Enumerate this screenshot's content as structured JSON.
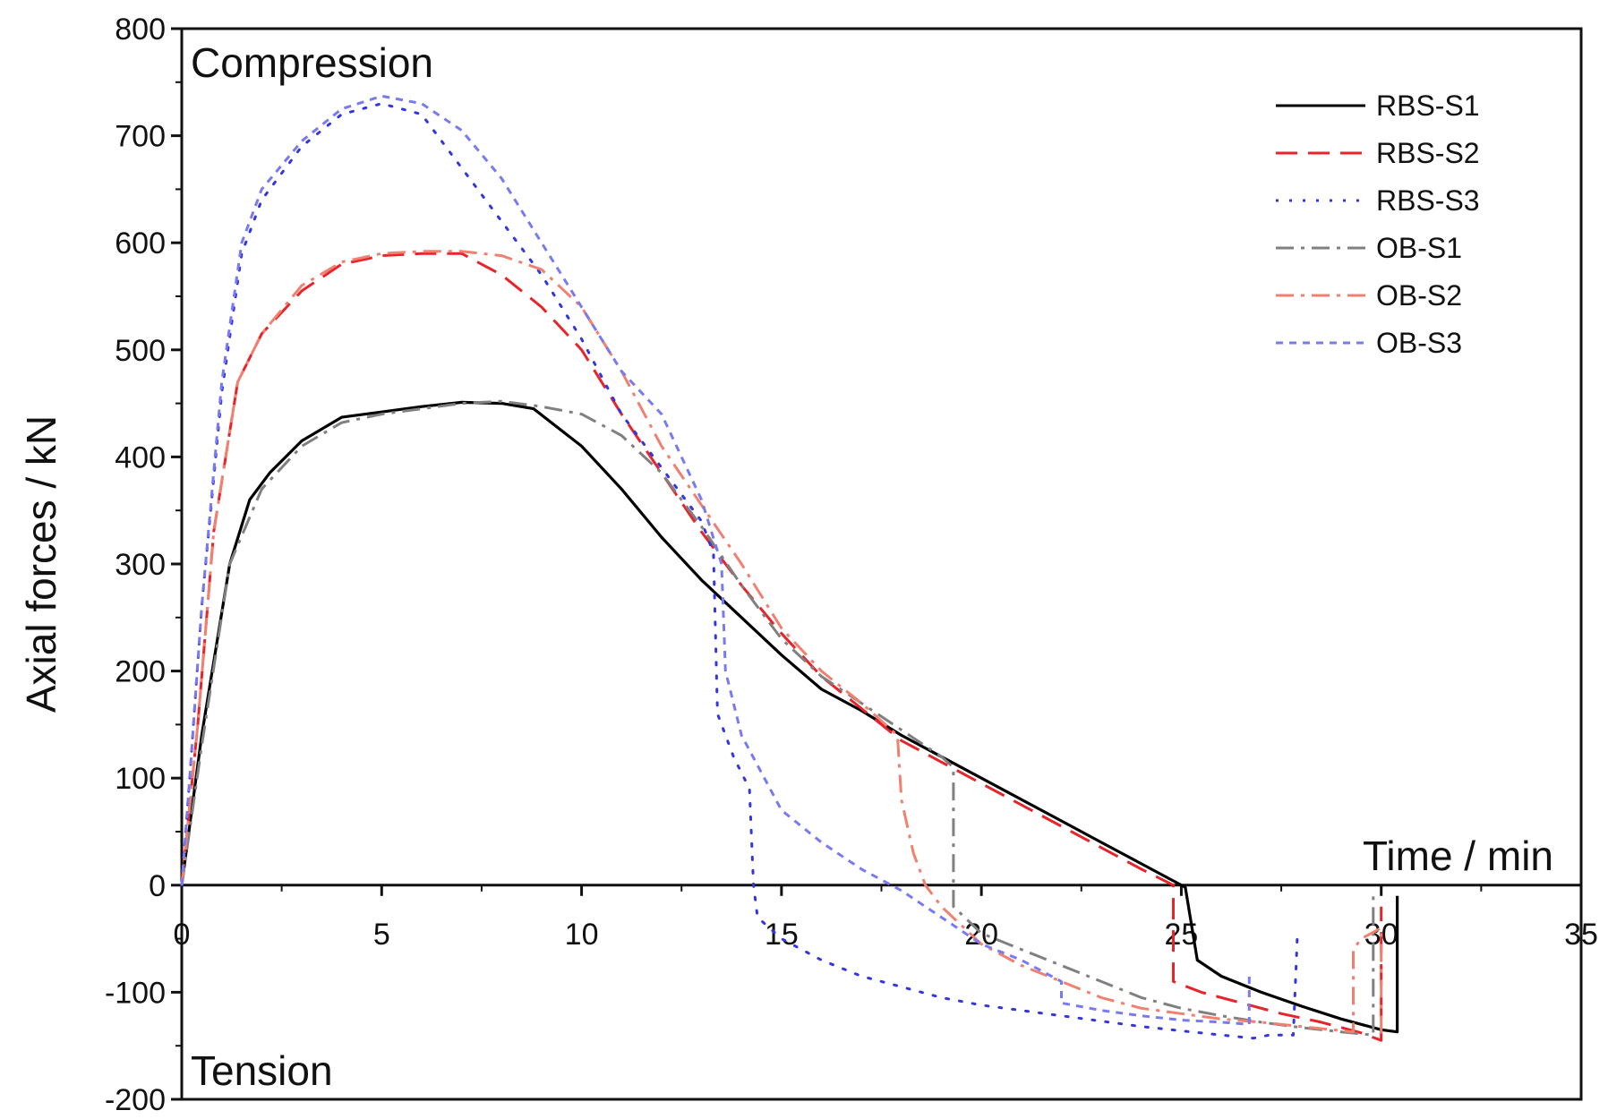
{
  "chart_data": {
    "type": "line",
    "xlabel": "Time / min",
    "ylabel": "Axial forces  / kN",
    "xlim": [
      0,
      35
    ],
    "ylim": [
      -200,
      800
    ],
    "xticks": [
      "0",
      "5",
      "10",
      "15",
      "20",
      "25",
      "30",
      "35"
    ],
    "yticks": [
      "800",
      "700",
      "600",
      "500",
      "400",
      "300",
      "200",
      "100",
      "0",
      "-100",
      "-200"
    ],
    "annotations": {
      "top": "Compression",
      "bottom": "Tension"
    },
    "grid": false,
    "legend_position": "top-right",
    "series": [
      {
        "name": "RBS-S1",
        "color": "#000000",
        "style": "solid",
        "points": [
          [
            0,
            0
          ],
          [
            0.5,
            140
          ],
          [
            1.2,
            300
          ],
          [
            1.7,
            360
          ],
          [
            2.2,
            385
          ],
          [
            3,
            415
          ],
          [
            4,
            437
          ],
          [
            5,
            442
          ],
          [
            6,
            447
          ],
          [
            7,
            451
          ],
          [
            8,
            450
          ],
          [
            8.8,
            445
          ],
          [
            10,
            410
          ],
          [
            11,
            370
          ],
          [
            12,
            325
          ],
          [
            13,
            285
          ],
          [
            14,
            250
          ],
          [
            15,
            215
          ],
          [
            16,
            183
          ],
          [
            17,
            163
          ],
          [
            18,
            140
          ],
          [
            19,
            120
          ],
          [
            20,
            100
          ],
          [
            21,
            80
          ],
          [
            22,
            60
          ],
          [
            23,
            40
          ],
          [
            24,
            20
          ],
          [
            24.9,
            2
          ],
          [
            25.1,
            -2
          ],
          [
            25.4,
            -70
          ],
          [
            26,
            -85
          ],
          [
            27,
            -100
          ],
          [
            28,
            -113
          ],
          [
            29,
            -125
          ],
          [
            30,
            -135
          ],
          [
            30.4,
            -137
          ],
          [
            30.4,
            -10
          ]
        ]
      },
      {
        "name": "RBS-S2",
        "color": "#e8232a",
        "style": "dashed",
        "points": [
          [
            0,
            0
          ],
          [
            0.4,
            150
          ],
          [
            0.8,
            330
          ],
          [
            1.4,
            470
          ],
          [
            2,
            515
          ],
          [
            3,
            555
          ],
          [
            4,
            580
          ],
          [
            5,
            588
          ],
          [
            6,
            590
          ],
          [
            7,
            590
          ],
          [
            8,
            570
          ],
          [
            9,
            540
          ],
          [
            10,
            500
          ],
          [
            11,
            440
          ],
          [
            12,
            385
          ],
          [
            13,
            330
          ],
          [
            14,
            280
          ],
          [
            15,
            235
          ],
          [
            16,
            195
          ],
          [
            17,
            165
          ],
          [
            18,
            135
          ],
          [
            19,
            115
          ],
          [
            20,
            95
          ],
          [
            21,
            75
          ],
          [
            22,
            55
          ],
          [
            23,
            35
          ],
          [
            24,
            15
          ],
          [
            24.8,
            0
          ],
          [
            24.8,
            -90
          ],
          [
            25.5,
            -100
          ],
          [
            26.5,
            -110
          ],
          [
            27.5,
            -120
          ],
          [
            28.5,
            -128
          ],
          [
            29.5,
            -138
          ],
          [
            30,
            -145
          ],
          [
            30,
            -20
          ]
        ]
      },
      {
        "name": "RBS-S3",
        "color": "#3535e0",
        "style": "dotted",
        "points": [
          [
            0,
            0
          ],
          [
            0.2,
            100
          ],
          [
            0.5,
            260
          ],
          [
            1,
            460
          ],
          [
            1.5,
            590
          ],
          [
            2,
            640
          ],
          [
            3,
            690
          ],
          [
            4,
            720
          ],
          [
            5,
            730
          ],
          [
            6,
            720
          ],
          [
            7,
            670
          ],
          [
            8,
            620
          ],
          [
            9,
            570
          ],
          [
            10,
            510
          ],
          [
            11,
            440
          ],
          [
            12,
            390
          ],
          [
            13,
            340
          ],
          [
            13.3,
            310
          ],
          [
            13.4,
            160
          ],
          [
            13.8,
            120
          ],
          [
            14.2,
            90
          ],
          [
            14.3,
            0
          ],
          [
            14.4,
            -30
          ],
          [
            15,
            -50
          ],
          [
            16,
            -70
          ],
          [
            17,
            -85
          ],
          [
            18,
            -95
          ],
          [
            19,
            -105
          ],
          [
            20,
            -112
          ],
          [
            22,
            -122
          ],
          [
            24,
            -132
          ],
          [
            25,
            -136
          ],
          [
            26,
            -140
          ],
          [
            26.8,
            -143
          ],
          [
            27.2,
            -140
          ],
          [
            27.8,
            -140
          ],
          [
            27.9,
            -50
          ]
        ]
      },
      {
        "name": "OB-S1",
        "color": "#808080",
        "style": "dashdot",
        "points": [
          [
            0,
            0
          ],
          [
            0.5,
            130
          ],
          [
            1.2,
            300
          ],
          [
            2,
            370
          ],
          [
            3,
            410
          ],
          [
            4,
            432
          ],
          [
            5,
            440
          ],
          [
            6,
            445
          ],
          [
            7,
            450
          ],
          [
            8,
            452
          ],
          [
            9,
            447
          ],
          [
            10,
            440
          ],
          [
            11,
            420
          ],
          [
            12,
            385
          ],
          [
            13,
            335
          ],
          [
            14,
            280
          ],
          [
            15,
            230
          ],
          [
            16,
            195
          ],
          [
            17,
            170
          ],
          [
            18,
            145
          ],
          [
            19,
            120
          ],
          [
            19.3,
            110
          ],
          [
            19.3,
            -20
          ],
          [
            20,
            -45
          ],
          [
            21,
            -60
          ],
          [
            22,
            -75
          ],
          [
            23,
            -90
          ],
          [
            24,
            -105
          ],
          [
            25,
            -115
          ],
          [
            26,
            -122
          ],
          [
            27,
            -128
          ],
          [
            28,
            -133
          ],
          [
            29,
            -137
          ],
          [
            29.8,
            -140
          ],
          [
            29.8,
            -10
          ]
        ]
      },
      {
        "name": "OB-S2",
        "color": "#f08070",
        "style": "dashdot",
        "points": [
          [
            0,
            0
          ],
          [
            0.4,
            150
          ],
          [
            0.8,
            330
          ],
          [
            1.4,
            470
          ],
          [
            2,
            515
          ],
          [
            3,
            560
          ],
          [
            4,
            582
          ],
          [
            5,
            590
          ],
          [
            6,
            592
          ],
          [
            7,
            592
          ],
          [
            8,
            588
          ],
          [
            9,
            575
          ],
          [
            10,
            540
          ],
          [
            11,
            480
          ],
          [
            12,
            410
          ],
          [
            13,
            355
          ],
          [
            14,
            300
          ],
          [
            15,
            240
          ],
          [
            16,
            200
          ],
          [
            17,
            170
          ],
          [
            17.9,
            140
          ],
          [
            18,
            80
          ],
          [
            18.3,
            30
          ],
          [
            18.6,
            0
          ],
          [
            19,
            -20
          ],
          [
            20,
            -55
          ],
          [
            21,
            -75
          ],
          [
            22,
            -90
          ],
          [
            23,
            -105
          ],
          [
            24,
            -115
          ],
          [
            25,
            -120
          ],
          [
            26,
            -125
          ],
          [
            27,
            -128
          ],
          [
            28,
            -132
          ],
          [
            29.3,
            -137
          ],
          [
            29.3,
            -60
          ],
          [
            29.5,
            -50
          ],
          [
            30,
            -40
          ],
          [
            30,
            -145
          ]
        ]
      },
      {
        "name": "OB-S3",
        "color": "#7a7af0",
        "style": "shortdash",
        "points": [
          [
            0,
            0
          ],
          [
            0.2,
            100
          ],
          [
            0.5,
            260
          ],
          [
            1,
            470
          ],
          [
            1.5,
            600
          ],
          [
            2,
            650
          ],
          [
            3,
            695
          ],
          [
            4,
            725
          ],
          [
            5,
            737
          ],
          [
            6,
            730
          ],
          [
            7,
            705
          ],
          [
            8,
            660
          ],
          [
            9,
            600
          ],
          [
            10,
            540
          ],
          [
            11,
            480
          ],
          [
            12,
            440
          ],
          [
            13,
            360
          ],
          [
            13.5,
            300
          ],
          [
            13.6,
            200
          ],
          [
            14,
            140
          ],
          [
            15,
            70
          ],
          [
            16,
            40
          ],
          [
            17,
            15
          ],
          [
            18,
            -5
          ],
          [
            19,
            -30
          ],
          [
            20,
            -55
          ],
          [
            21,
            -70
          ],
          [
            22,
            -90
          ],
          [
            22,
            -110
          ],
          [
            23,
            -117
          ],
          [
            24,
            -122
          ],
          [
            25,
            -126
          ],
          [
            26,
            -128
          ],
          [
            26.7,
            -130
          ],
          [
            26.7,
            -80
          ]
        ]
      }
    ]
  }
}
